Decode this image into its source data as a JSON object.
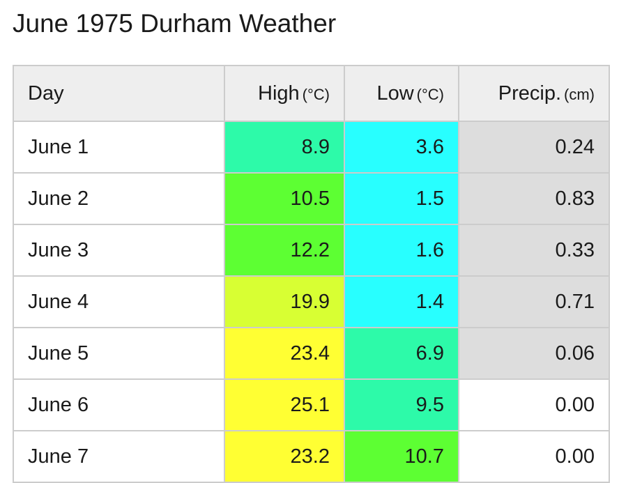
{
  "title": "June 1975 Durham Weather",
  "columns": {
    "day": "Day",
    "high": "High",
    "high_unit": "(°C)",
    "low": "Low",
    "low_unit": "(°C)",
    "precip": "Precip.",
    "precip_unit": "(cm)"
  },
  "rows": [
    {
      "day": "June 1",
      "high": "8.9",
      "low": "3.6",
      "precip": "0.24",
      "high_color": "#2dfaa9",
      "low_color": "#28ffff",
      "precip_color": "#dddddd"
    },
    {
      "day": "June 2",
      "high": "10.5",
      "low": "1.5",
      "precip": "0.83",
      "high_color": "#5dff33",
      "low_color": "#28ffff",
      "precip_color": "#dddddd"
    },
    {
      "day": "June 3",
      "high": "12.2",
      "low": "1.6",
      "precip": "0.33",
      "high_color": "#5dff33",
      "low_color": "#28ffff",
      "precip_color": "#dddddd"
    },
    {
      "day": "June 4",
      "high": "19.9",
      "low": "1.4",
      "precip": "0.71",
      "high_color": "#d8ff33",
      "low_color": "#28ffff",
      "precip_color": "#dddddd"
    },
    {
      "day": "June 5",
      "high": "23.4",
      "low": "6.9",
      "precip": "0.06",
      "high_color": "#ffff33",
      "low_color": "#2dfaa9",
      "precip_color": "#dddddd"
    },
    {
      "day": "June 6",
      "high": "25.1",
      "low": "9.5",
      "precip": "0.00",
      "high_color": "#ffff33",
      "low_color": "#2dfaa9",
      "precip_color": "#ffffff"
    },
    {
      "day": "June 7",
      "high": "23.2",
      "low": "10.7",
      "precip": "0.00",
      "high_color": "#ffff33",
      "low_color": "#5dff33",
      "precip_color": "#ffffff"
    }
  ]
}
